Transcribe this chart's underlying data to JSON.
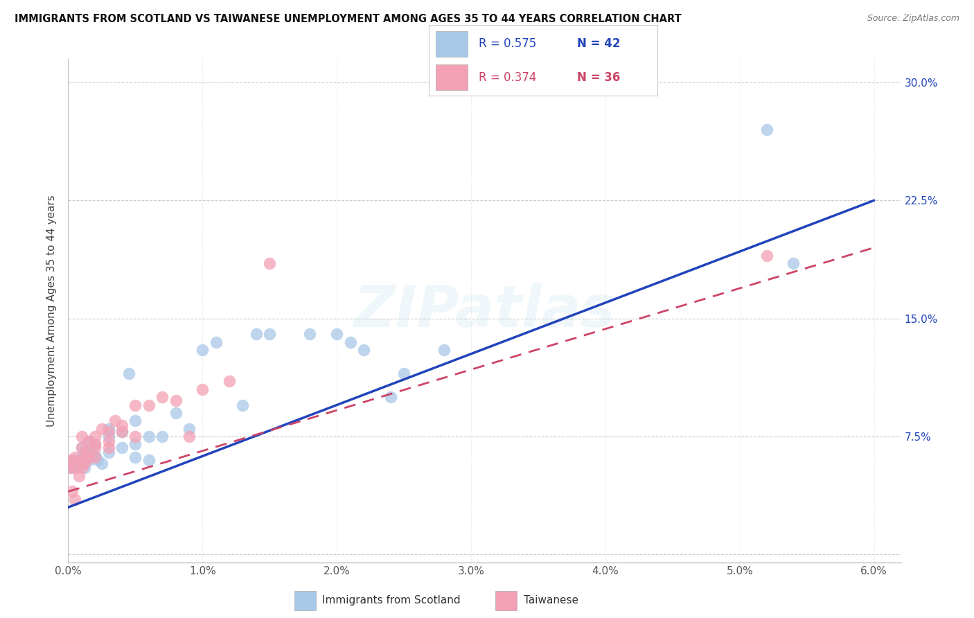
{
  "title": "IMMIGRANTS FROM SCOTLAND VS TAIWANESE UNEMPLOYMENT AMONG AGES 35 TO 44 YEARS CORRELATION CHART",
  "source": "Source: ZipAtlas.com",
  "ylabel": "Unemployment Among Ages 35 to 44 years",
  "xlim": [
    0.0,
    0.062
  ],
  "ylim": [
    -0.005,
    0.315
  ],
  "xticks": [
    0.0,
    0.01,
    0.02,
    0.03,
    0.04,
    0.05,
    0.06
  ],
  "xticklabels": [
    "0.0%",
    "1.0%",
    "2.0%",
    "3.0%",
    "4.0%",
    "5.0%",
    "6.0%"
  ],
  "yticks": [
    0.0,
    0.075,
    0.15,
    0.225,
    0.3
  ],
  "yticklabels": [
    "",
    "7.5%",
    "15.0%",
    "22.5%",
    "30.0%"
  ],
  "legend_r1": "R = 0.575",
  "legend_n1": "N = 42",
  "legend_r2": "R = 0.374",
  "legend_n2": "N = 36",
  "legend_label1": "Immigrants from Scotland",
  "legend_label2": "Taiwanese",
  "blue_color": "#a8c8e8",
  "pink_color": "#f4a0b5",
  "blue_line_color": "#2244bb",
  "pink_line_color": "#cc4466",
  "watermark": "ZIPatlas",
  "blue_line_x0": 0.0,
  "blue_line_y0": 0.03,
  "blue_line_x1": 0.06,
  "blue_line_y1": 0.225,
  "pink_line_x0": 0.0,
  "pink_line_y0": 0.04,
  "pink_line_x1": 0.06,
  "pink_line_y1": 0.195,
  "blue_points_x": [
    0.0003,
    0.0005,
    0.0008,
    0.001,
    0.001,
    0.0012,
    0.0013,
    0.0015,
    0.0015,
    0.0018,
    0.002,
    0.002,
    0.0022,
    0.0025,
    0.003,
    0.003,
    0.003,
    0.004,
    0.004,
    0.0045,
    0.005,
    0.005,
    0.005,
    0.006,
    0.006,
    0.007,
    0.008,
    0.009,
    0.01,
    0.011,
    0.013,
    0.014,
    0.015,
    0.018,
    0.02,
    0.021,
    0.022,
    0.024,
    0.025,
    0.028,
    0.052,
    0.054
  ],
  "blue_points_y": [
    0.055,
    0.06,
    0.058,
    0.062,
    0.068,
    0.055,
    0.065,
    0.06,
    0.072,
    0.065,
    0.063,
    0.07,
    0.06,
    0.058,
    0.065,
    0.075,
    0.08,
    0.078,
    0.068,
    0.115,
    0.062,
    0.07,
    0.085,
    0.06,
    0.075,
    0.075,
    0.09,
    0.08,
    0.13,
    0.135,
    0.095,
    0.14,
    0.14,
    0.14,
    0.14,
    0.135,
    0.13,
    0.1,
    0.115,
    0.13,
    0.27,
    0.185
  ],
  "pink_points_x": [
    0.0001,
    0.0002,
    0.0003,
    0.0005,
    0.0005,
    0.0005,
    0.0008,
    0.001,
    0.001,
    0.001,
    0.001,
    0.0012,
    0.0013,
    0.0015,
    0.0015,
    0.002,
    0.002,
    0.002,
    0.002,
    0.0025,
    0.003,
    0.003,
    0.003,
    0.0035,
    0.004,
    0.004,
    0.005,
    0.005,
    0.006,
    0.007,
    0.008,
    0.009,
    0.01,
    0.012,
    0.015,
    0.052
  ],
  "pink_points_y": [
    0.055,
    0.06,
    0.04,
    0.055,
    0.062,
    0.035,
    0.05,
    0.06,
    0.055,
    0.068,
    0.075,
    0.058,
    0.065,
    0.072,
    0.062,
    0.068,
    0.075,
    0.07,
    0.062,
    0.08,
    0.068,
    0.078,
    0.072,
    0.085,
    0.082,
    0.078,
    0.075,
    0.095,
    0.095,
    0.1,
    0.098,
    0.075,
    0.105,
    0.11,
    0.185,
    0.19
  ]
}
